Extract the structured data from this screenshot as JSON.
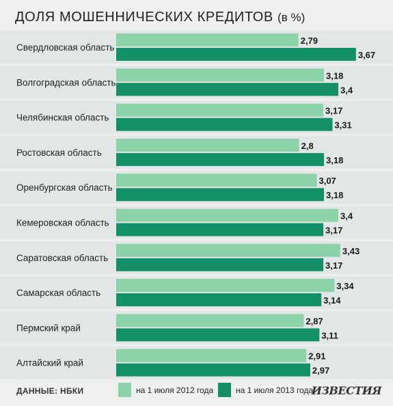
{
  "title": "ДОЛЯ МОШЕННИЧЕСКИХ КРЕДИТОВ",
  "title_unit": "(в %)",
  "source": "ДАННЫЕ: НБКИ",
  "brand": "ИЗВЕСТИЯ",
  "colors": {
    "series_2012": "#8dd3a9",
    "series_2013": "#139068",
    "row_band": "#e3e6e6",
    "background": "#eef0f0"
  },
  "chart_data": {
    "type": "bar",
    "orientation": "horizontal",
    "categories": [
      "Свердловская область",
      "Волгоградская область",
      "Челябинская область",
      "Ростовская область",
      "Оренбургская область",
      "Кемеровская область",
      "Саратовская область",
      "Самарская область",
      "Пермский край",
      "Алтайский край"
    ],
    "series": [
      {
        "name": "на 1 июля 2012 года",
        "values": [
          2.79,
          3.18,
          3.17,
          2.8,
          3.07,
          3.4,
          3.43,
          3.34,
          2.87,
          2.91
        ]
      },
      {
        "name": "на 1 июля 2013 года",
        "values": [
          3.67,
          3.4,
          3.31,
          3.18,
          3.18,
          3.17,
          3.17,
          3.14,
          3.11,
          2.97
        ]
      }
    ],
    "value_labels": [
      [
        "2,79",
        "3,18",
        "3,17",
        "2,8",
        "3,07",
        "3,4",
        "3,43",
        "3,34",
        "2,87",
        "2,91"
      ],
      [
        "3,67",
        "3,4",
        "3,31",
        "3,18",
        "3,18",
        "3,17",
        "3,17",
        "3,14",
        "3,11",
        "2,97"
      ]
    ],
    "legend_position": "bottom",
    "grid": false
  }
}
